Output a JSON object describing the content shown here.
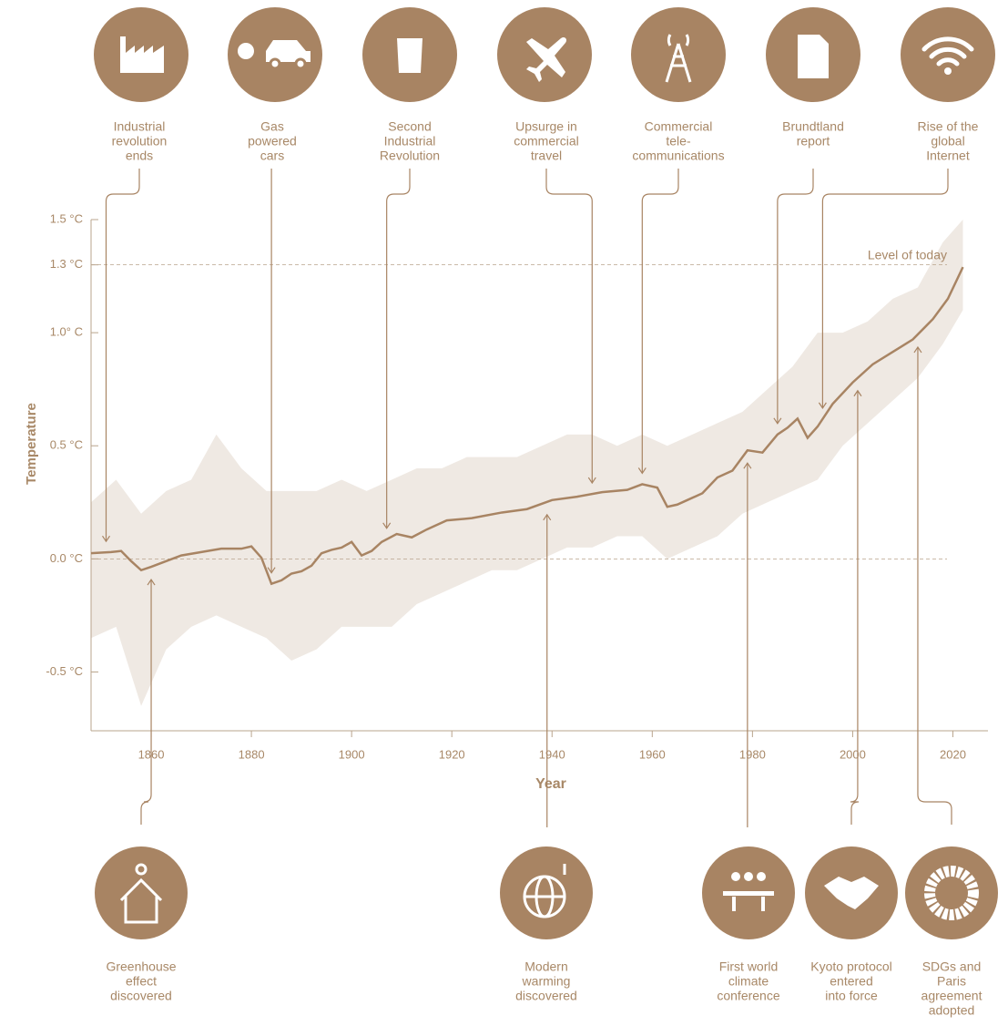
{
  "chart_data": {
    "type": "line",
    "xlabel": "Year",
    "ylabel": "Temperature",
    "xlim": [
      1848,
      2027
    ],
    "xticks": [
      1860,
      1880,
      1900,
      1920,
      1940,
      1960,
      1980,
      2000,
      2020
    ],
    "ylim": [
      -0.76,
      1.5
    ],
    "yticks": [
      {
        "value": -0.5,
        "label": "-0.5 °C"
      },
      {
        "value": 0,
        "label": "0.0 °C"
      },
      {
        "value": 0.5,
        "label": "0.5 °C"
      },
      {
        "value": 1.0,
        "label": "1.0° C"
      },
      {
        "value": 1.3,
        "label": "1.3 °C"
      },
      {
        "value": 1.5,
        "label": "1.5 °C"
      }
    ],
    "color": "#a88463",
    "x": [
      1848,
      1852,
      1854,
      1856,
      1858,
      1860,
      1863,
      1866,
      1870,
      1874,
      1878,
      1880,
      1882,
      1884,
      1886,
      1888,
      1890,
      1892,
      1894,
      1896,
      1898,
      1900,
      1902,
      1904,
      1906,
      1909,
      1912,
      1915,
      1919,
      1924,
      1930,
      1935,
      1940,
      1945,
      1950,
      1955,
      1958,
      1961,
      1963,
      1965,
      1967,
      1970,
      1973,
      1976,
      1979,
      1982,
      1985,
      1987,
      1989,
      1991,
      1993,
      1996,
      2000,
      2004,
      2008,
      2012,
      2016,
      2019,
      2022
    ],
    "values": [
      0.025,
      0.03,
      0.035,
      -0.01,
      -0.05,
      -0.035,
      -0.01,
      0.015,
      0.03,
      0.045,
      0.045,
      0.055,
      0.005,
      -0.11,
      -0.095,
      -0.065,
      -0.055,
      -0.03,
      0.025,
      0.04,
      0.05,
      0.075,
      0.015,
      0.035,
      0.075,
      0.11,
      0.095,
      0.13,
      0.17,
      0.18,
      0.205,
      0.22,
      0.26,
      0.275,
      0.295,
      0.305,
      0.33,
      0.315,
      0.23,
      0.24,
      0.26,
      0.29,
      0.36,
      0.39,
      0.48,
      0.47,
      0.55,
      0.58,
      0.62,
      0.535,
      0.585,
      0.685,
      0.78,
      0.86,
      0.915,
      0.97,
      1.06,
      1.15,
      1.29
    ],
    "band": {
      "color": "#efe9e3",
      "x": [
        1848,
        1853,
        1858,
        1863,
        1868,
        1873,
        1878,
        1883,
        1888,
        1893,
        1898,
        1903,
        1908,
        1913,
        1918,
        1923,
        1928,
        1933,
        1938,
        1943,
        1948,
        1953,
        1958,
        1963,
        1968,
        1973,
        1978,
        1983,
        1988,
        1993,
        1998,
        2003,
        2008,
        2013,
        2018,
        2022
      ],
      "upper": [
        0.25,
        0.35,
        0.2,
        0.3,
        0.35,
        0.55,
        0.4,
        0.3,
        0.3,
        0.3,
        0.35,
        0.3,
        0.35,
        0.4,
        0.4,
        0.45,
        0.45,
        0.45,
        0.5,
        0.55,
        0.55,
        0.5,
        0.55,
        0.5,
        0.55,
        0.6,
        0.65,
        0.75,
        0.85,
        1.0,
        1.0,
        1.05,
        1.15,
        1.2,
        1.4,
        1.5
      ],
      "lower": [
        -0.35,
        -0.3,
        -0.65,
        -0.4,
        -0.3,
        -0.25,
        -0.3,
        -0.35,
        -0.45,
        -0.4,
        -0.3,
        -0.3,
        -0.3,
        -0.2,
        -0.15,
        -0.1,
        -0.05,
        -0.05,
        0.0,
        0.05,
        0.05,
        0.1,
        0.1,
        0.0,
        0.05,
        0.1,
        0.2,
        0.25,
        0.3,
        0.35,
        0.5,
        0.6,
        0.7,
        0.8,
        0.95,
        1.1
      ]
    },
    "reference_lines": [
      {
        "value": 1.3,
        "label": "Level of today"
      },
      {
        "value": 0
      }
    ],
    "top_events": [
      {
        "label": [
          "Industrial",
          "revolution",
          "ends"
        ],
        "year": 1851
      },
      {
        "label": [
          "Gas",
          "powered",
          "cars"
        ],
        "year": 1884
      },
      {
        "label": [
          "Second",
          "Industrial",
          "Revolution"
        ],
        "year": 1907
      },
      {
        "label": [
          "Upsurge in",
          "commercial",
          "travel"
        ],
        "year": 1948
      },
      {
        "label": [
          "Commercial",
          "tele-",
          "communications"
        ],
        "year": 1958
      },
      {
        "label": [
          "Brundtland",
          "report"
        ],
        "year": 1985
      },
      {
        "label": [
          "Rise of the",
          "global",
          "Internet"
        ],
        "year": 1994
      }
    ],
    "bottom_events": [
      {
        "label": [
          "Greenhouse",
          "effect",
          "discovered"
        ],
        "year": 1860
      },
      {
        "label": [
          "Modern",
          "warming",
          "discovered"
        ],
        "year": 1939
      },
      {
        "label": [
          "First world",
          "climate",
          "conference"
        ],
        "year": 1979
      },
      {
        "label": [
          "Kyoto protocol",
          "entered",
          "into force"
        ],
        "year": 2001
      },
      {
        "label": [
          "SDGs and",
          "Paris",
          "agreement",
          "adopted"
        ],
        "year": 2013
      }
    ]
  }
}
